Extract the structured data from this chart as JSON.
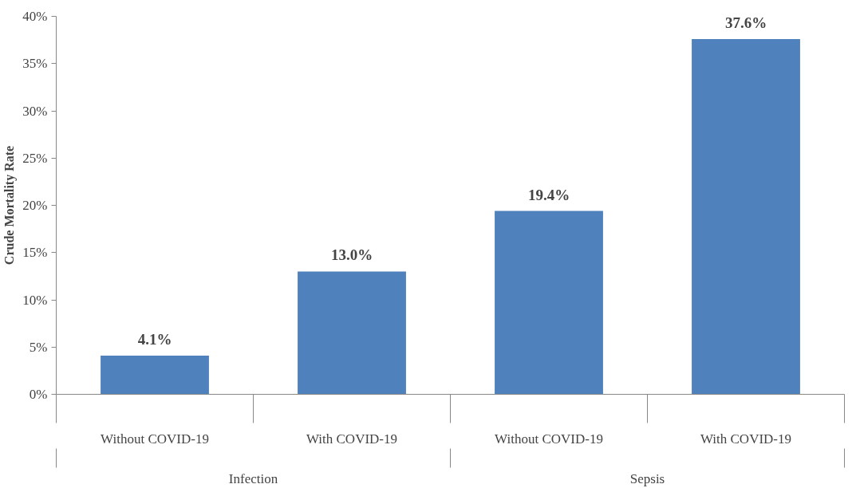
{
  "chart_data": {
    "type": "bar",
    "ylabel": "Crude Mortality Rate",
    "categories": [
      "Without COVID-19",
      "With COVID-19",
      "Without COVID-19",
      "With COVID-19"
    ],
    "values": [
      4.1,
      13.0,
      19.4,
      37.6
    ],
    "value_labels": [
      "4.1%",
      "13.0%",
      "19.4%",
      "37.6%"
    ],
    "color": "#4f81bd",
    "ylim": [
      0,
      40
    ],
    "yticks": [
      {
        "value": 0,
        "label": "0%"
      },
      {
        "value": 5,
        "label": "5%"
      },
      {
        "value": 10,
        "label": "10%"
      },
      {
        "value": 15,
        "label": "15%"
      },
      {
        "value": 20,
        "label": "20%"
      },
      {
        "value": 25,
        "label": "25%"
      },
      {
        "value": 30,
        "label": "30%"
      },
      {
        "value": 35,
        "label": "35%"
      },
      {
        "value": 40,
        "label": "40%"
      }
    ],
    "annotations": [
      "Infection",
      "Sepsis"
    ],
    "grid": false
  }
}
